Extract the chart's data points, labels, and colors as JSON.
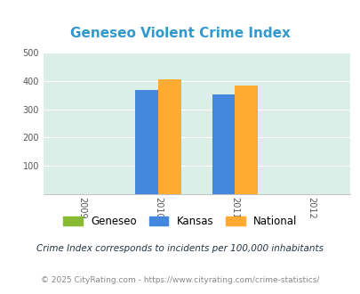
{
  "title": "Geneseo Violent Crime Index",
  "title_color": "#3399cc",
  "years": [
    2009,
    2010,
    2011,
    2012
  ],
  "bar_years": [
    2010,
    2011
  ],
  "geneseo_values": [
    0,
    0
  ],
  "kansas_values": [
    370,
    352
  ],
  "national_values": [
    405,
    385
  ],
  "geneseo_color": "#88bb33",
  "kansas_color": "#4488dd",
  "national_color": "#ffaa33",
  "bg_color": "#dceee8",
  "ylim": [
    0,
    500
  ],
  "yticks": [
    0,
    100,
    200,
    300,
    400,
    500
  ],
  "legend_labels": [
    "Geneseo",
    "Kansas",
    "National"
  ],
  "footnote1": "Crime Index corresponds to incidents per 100,000 inhabitants",
  "footnote2": "© 2025 CityRating.com - https://www.cityrating.com/crime-statistics/",
  "bar_width": 0.3,
  "figsize": [
    4.06,
    3.3
  ],
  "dpi": 100
}
